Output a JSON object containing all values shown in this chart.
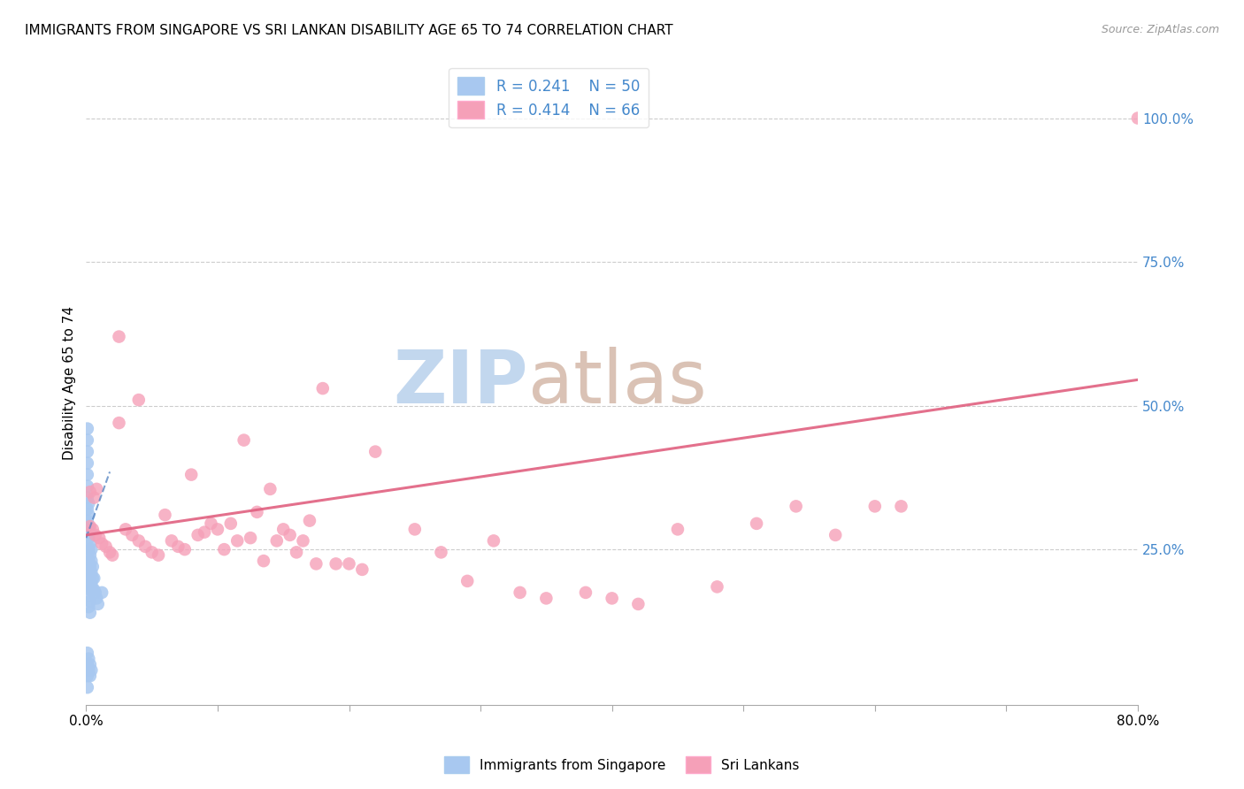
{
  "title": "IMMIGRANTS FROM SINGAPORE VS SRI LANKAN DISABILITY AGE 65 TO 74 CORRELATION CHART",
  "source": "Source: ZipAtlas.com",
  "ylabel": "Disability Age 65 to 74",
  "xlim": [
    0.0,
    0.8
  ],
  "ylim": [
    -0.02,
    1.1
  ],
  "ytick_vals": [
    0.25,
    0.5,
    0.75,
    1.0
  ],
  "ytick_labels": [
    "25.0%",
    "50.0%",
    "75.0%",
    "100.0%"
  ],
  "xtick_vals": [
    0.0,
    0.1,
    0.2,
    0.3,
    0.4,
    0.5,
    0.6,
    0.7,
    0.8
  ],
  "xtick_labels": [
    "0.0%",
    "",
    "",
    "",
    "",
    "",
    "",
    "",
    "80.0%"
  ],
  "legend_r1": "R = 0.241",
  "legend_n1": "N = 50",
  "legend_r2": "R = 0.414",
  "legend_n2": "N = 66",
  "singapore_color": "#a8c8f0",
  "srilanka_color": "#f5a0b8",
  "singapore_line_color": "#5080c0",
  "srilanka_line_color": "#e06080",
  "watermark": "ZIPatlas",
  "watermark_zip_color": "#b0c8e8",
  "watermark_atlas_color": "#c8b0a8",
  "sg_x": [
    0.001,
    0.001,
    0.001,
    0.001,
    0.001,
    0.001,
    0.001,
    0.001,
    0.001,
    0.001,
    0.002,
    0.002,
    0.002,
    0.002,
    0.002,
    0.002,
    0.002,
    0.002,
    0.002,
    0.002,
    0.003,
    0.003,
    0.003,
    0.003,
    0.003,
    0.003,
    0.003,
    0.003,
    0.004,
    0.004,
    0.004,
    0.004,
    0.005,
    0.005,
    0.005,
    0.006,
    0.006,
    0.007,
    0.008,
    0.009,
    0.001,
    0.001,
    0.001,
    0.002,
    0.002,
    0.003,
    0.003,
    0.004,
    0.001,
    0.012
  ],
  "sg_y": [
    0.46,
    0.44,
    0.42,
    0.4,
    0.38,
    0.36,
    0.34,
    0.32,
    0.3,
    0.28,
    0.33,
    0.31,
    0.29,
    0.27,
    0.25,
    0.23,
    0.21,
    0.19,
    0.17,
    0.15,
    0.28,
    0.26,
    0.24,
    0.22,
    0.2,
    0.18,
    0.16,
    0.14,
    0.25,
    0.23,
    0.21,
    0.19,
    0.22,
    0.2,
    0.18,
    0.2,
    0.18,
    0.175,
    0.165,
    0.155,
    0.07,
    0.05,
    0.03,
    0.06,
    0.04,
    0.05,
    0.03,
    0.04,
    0.01,
    0.175
  ],
  "sl_x": [
    0.003,
    0.005,
    0.007,
    0.008,
    0.01,
    0.012,
    0.015,
    0.018,
    0.02,
    0.025,
    0.03,
    0.035,
    0.04,
    0.045,
    0.05,
    0.055,
    0.06,
    0.065,
    0.07,
    0.075,
    0.08,
    0.085,
    0.09,
    0.095,
    0.1,
    0.105,
    0.11,
    0.115,
    0.12,
    0.125,
    0.13,
    0.135,
    0.14,
    0.145,
    0.15,
    0.155,
    0.16,
    0.165,
    0.17,
    0.175,
    0.19,
    0.2,
    0.21,
    0.22,
    0.25,
    0.27,
    0.29,
    0.31,
    0.33,
    0.35,
    0.38,
    0.4,
    0.42,
    0.45,
    0.48,
    0.51,
    0.54,
    0.57,
    0.6,
    0.62,
    0.003,
    0.006,
    0.025,
    0.04,
    0.8,
    0.18
  ],
  "sl_y": [
    0.29,
    0.285,
    0.275,
    0.355,
    0.27,
    0.26,
    0.255,
    0.245,
    0.24,
    0.47,
    0.285,
    0.275,
    0.265,
    0.255,
    0.245,
    0.24,
    0.31,
    0.265,
    0.255,
    0.25,
    0.38,
    0.275,
    0.28,
    0.295,
    0.285,
    0.25,
    0.295,
    0.265,
    0.44,
    0.27,
    0.315,
    0.23,
    0.355,
    0.265,
    0.285,
    0.275,
    0.245,
    0.265,
    0.3,
    0.225,
    0.225,
    0.225,
    0.215,
    0.42,
    0.285,
    0.245,
    0.195,
    0.265,
    0.175,
    0.165,
    0.175,
    0.165,
    0.155,
    0.285,
    0.185,
    0.295,
    0.325,
    0.275,
    0.325,
    0.325,
    0.35,
    0.34,
    0.62,
    0.51,
    1.0,
    0.53
  ],
  "sg_line_x": [
    0.0,
    0.018
  ],
  "sg_line_y": [
    0.27,
    0.385
  ],
  "sl_line_x": [
    0.0,
    0.8
  ],
  "sl_line_y": [
    0.275,
    0.545
  ]
}
